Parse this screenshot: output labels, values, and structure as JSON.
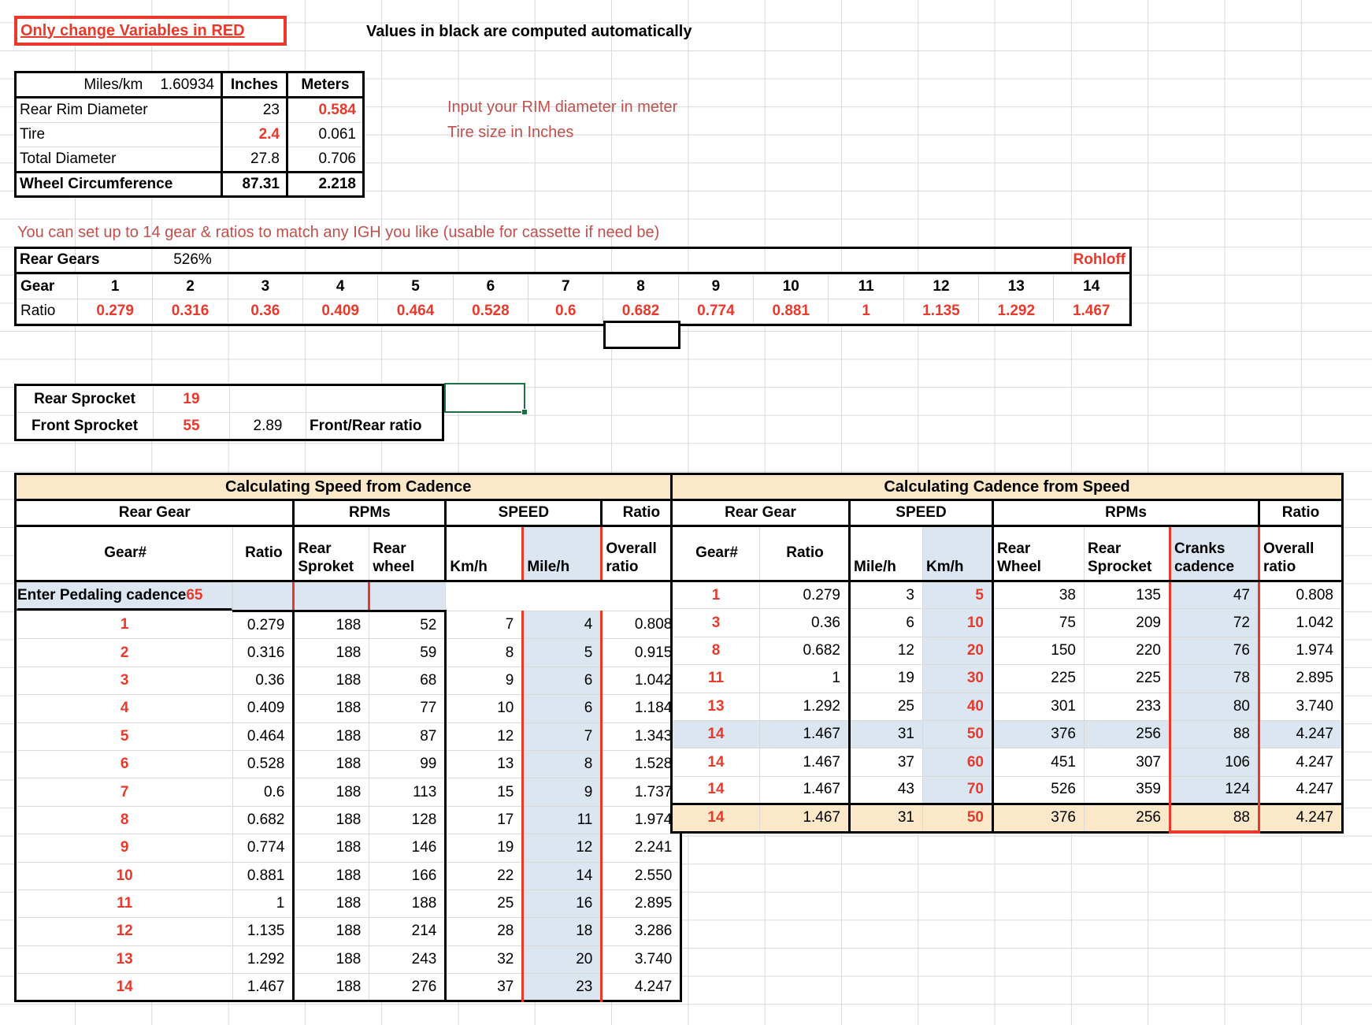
{
  "banner": {
    "warning": "Only change Variables in RED",
    "info": "Values in black are computed automatically"
  },
  "wheel_table": {
    "header_label": "Miles/km",
    "header_value": "1.60934",
    "col_inches": "Inches",
    "col_meters": "Meters",
    "rows": [
      [
        "Rear Rim Diameter",
        "23",
        "0.584"
      ],
      [
        "Tire",
        "2.4",
        "0.061"
      ],
      [
        "Total Diameter",
        "27.8",
        "0.706"
      ],
      [
        "Wheel Circumference",
        "87.31",
        "2.218"
      ]
    ]
  },
  "hints": {
    "rim": "Input your RIM diameter in meter",
    "tire": "Tire size in Inches",
    "gears": "You can set up to 14 gear & ratios to match any IGH you like (usable for cassette if need be)"
  },
  "gear_table": {
    "title": "Rear Gears",
    "range_pct": "526%",
    "brand": "Rohloff",
    "rows": [
      [
        "Gear",
        "1",
        "2",
        "3",
        "4",
        "5",
        "6",
        "7",
        "8",
        "9",
        "10",
        "11",
        "12",
        "13",
        "14"
      ],
      [
        "Ratio",
        "0.279",
        "0.316",
        "0.36",
        "0.409",
        "0.464",
        "0.528",
        "0.6",
        "0.682",
        "0.774",
        "0.881",
        "1",
        "1.135",
        "1.292",
        "1.467"
      ]
    ]
  },
  "sprockets": {
    "rows": [
      [
        "Rear Sprocket",
        "19",
        "",
        ""
      ],
      [
        "Front Sprocket",
        "55",
        "2.89",
        "Front/Rear ratio"
      ]
    ]
  },
  "speed_table": {
    "title": "Calculating Speed from Cadence",
    "groups": [
      "Rear Gear",
      "RPMs",
      "SPEED",
      "Ratio"
    ],
    "columns": [
      "Gear#",
      "Ratio",
      "Rear\nSproket",
      "Rear\nwheel",
      "Km/h",
      "Mile/h",
      "Overall\nratio"
    ],
    "cadence_label": "Enter Pedaling cadence",
    "cadence_value": "65",
    "rows": [
      [
        "1",
        "0.279",
        "188",
        "52",
        "7",
        "4",
        "0.808"
      ],
      [
        "2",
        "0.316",
        "188",
        "59",
        "8",
        "5",
        "0.915"
      ],
      [
        "3",
        "0.36",
        "188",
        "68",
        "9",
        "6",
        "1.042"
      ],
      [
        "4",
        "0.409",
        "188",
        "77",
        "10",
        "6",
        "1.184"
      ],
      [
        "5",
        "0.464",
        "188",
        "87",
        "12",
        "7",
        "1.343"
      ],
      [
        "6",
        "0.528",
        "188",
        "99",
        "13",
        "8",
        "1.528"
      ],
      [
        "7",
        "0.6",
        "188",
        "113",
        "15",
        "9",
        "1.737"
      ],
      [
        "8",
        "0.682",
        "188",
        "128",
        "17",
        "11",
        "1.974"
      ],
      [
        "9",
        "0.774",
        "188",
        "146",
        "19",
        "12",
        "2.241"
      ],
      [
        "10",
        "0.881",
        "188",
        "166",
        "22",
        "14",
        "2.550"
      ],
      [
        "11",
        "1",
        "188",
        "188",
        "25",
        "16",
        "2.895"
      ],
      [
        "12",
        "1.135",
        "188",
        "214",
        "28",
        "18",
        "3.286"
      ],
      [
        "13",
        "1.292",
        "188",
        "243",
        "32",
        "20",
        "3.740"
      ],
      [
        "14",
        "1.467",
        "188",
        "276",
        "37",
        "23",
        "4.247"
      ]
    ]
  },
  "cadence_table": {
    "title": "Calculating Cadence from Speed",
    "groups": [
      "Rear Gear",
      "SPEED",
      "RPMs",
      "Ratio"
    ],
    "columns": [
      "Gear#",
      "Ratio",
      "Mile/h",
      "Km/h",
      "Rear\nWheel",
      "Rear\nSprocket",
      "Cranks\ncadence",
      "Overall\nratio"
    ],
    "rows": [
      [
        "1",
        "0.279",
        "3",
        "5",
        "38",
        "135",
        "47",
        "0.808"
      ],
      [
        "3",
        "0.36",
        "6",
        "10",
        "75",
        "209",
        "72",
        "1.042"
      ],
      [
        "8",
        "0.682",
        "12",
        "20",
        "150",
        "220",
        "76",
        "1.974"
      ],
      [
        "11",
        "1",
        "19",
        "30",
        "225",
        "225",
        "78",
        "2.895"
      ],
      [
        "13",
        "1.292",
        "25",
        "40",
        "301",
        "233",
        "80",
        "3.740"
      ],
      [
        "14",
        "1.467",
        "31",
        "50",
        "376",
        "256",
        "88",
        "4.247"
      ],
      [
        "14",
        "1.467",
        "37",
        "60",
        "451",
        "307",
        "106",
        "4.247"
      ],
      [
        "14",
        "1.467",
        "43",
        "70",
        "526",
        "359",
        "124",
        "4.247"
      ]
    ],
    "summary_rows": [
      [
        "14",
        "1.467",
        "31",
        "50",
        "376",
        "256",
        "88",
        "4.247"
      ]
    ]
  },
  "colors": {
    "red_value": "#e8392b",
    "red_annotation": "#c0504d",
    "tan_header": "#fae8c8",
    "light_blue": "#dce6f1",
    "selection_green": "#1e7145",
    "gridline": "#d9d9d9"
  }
}
